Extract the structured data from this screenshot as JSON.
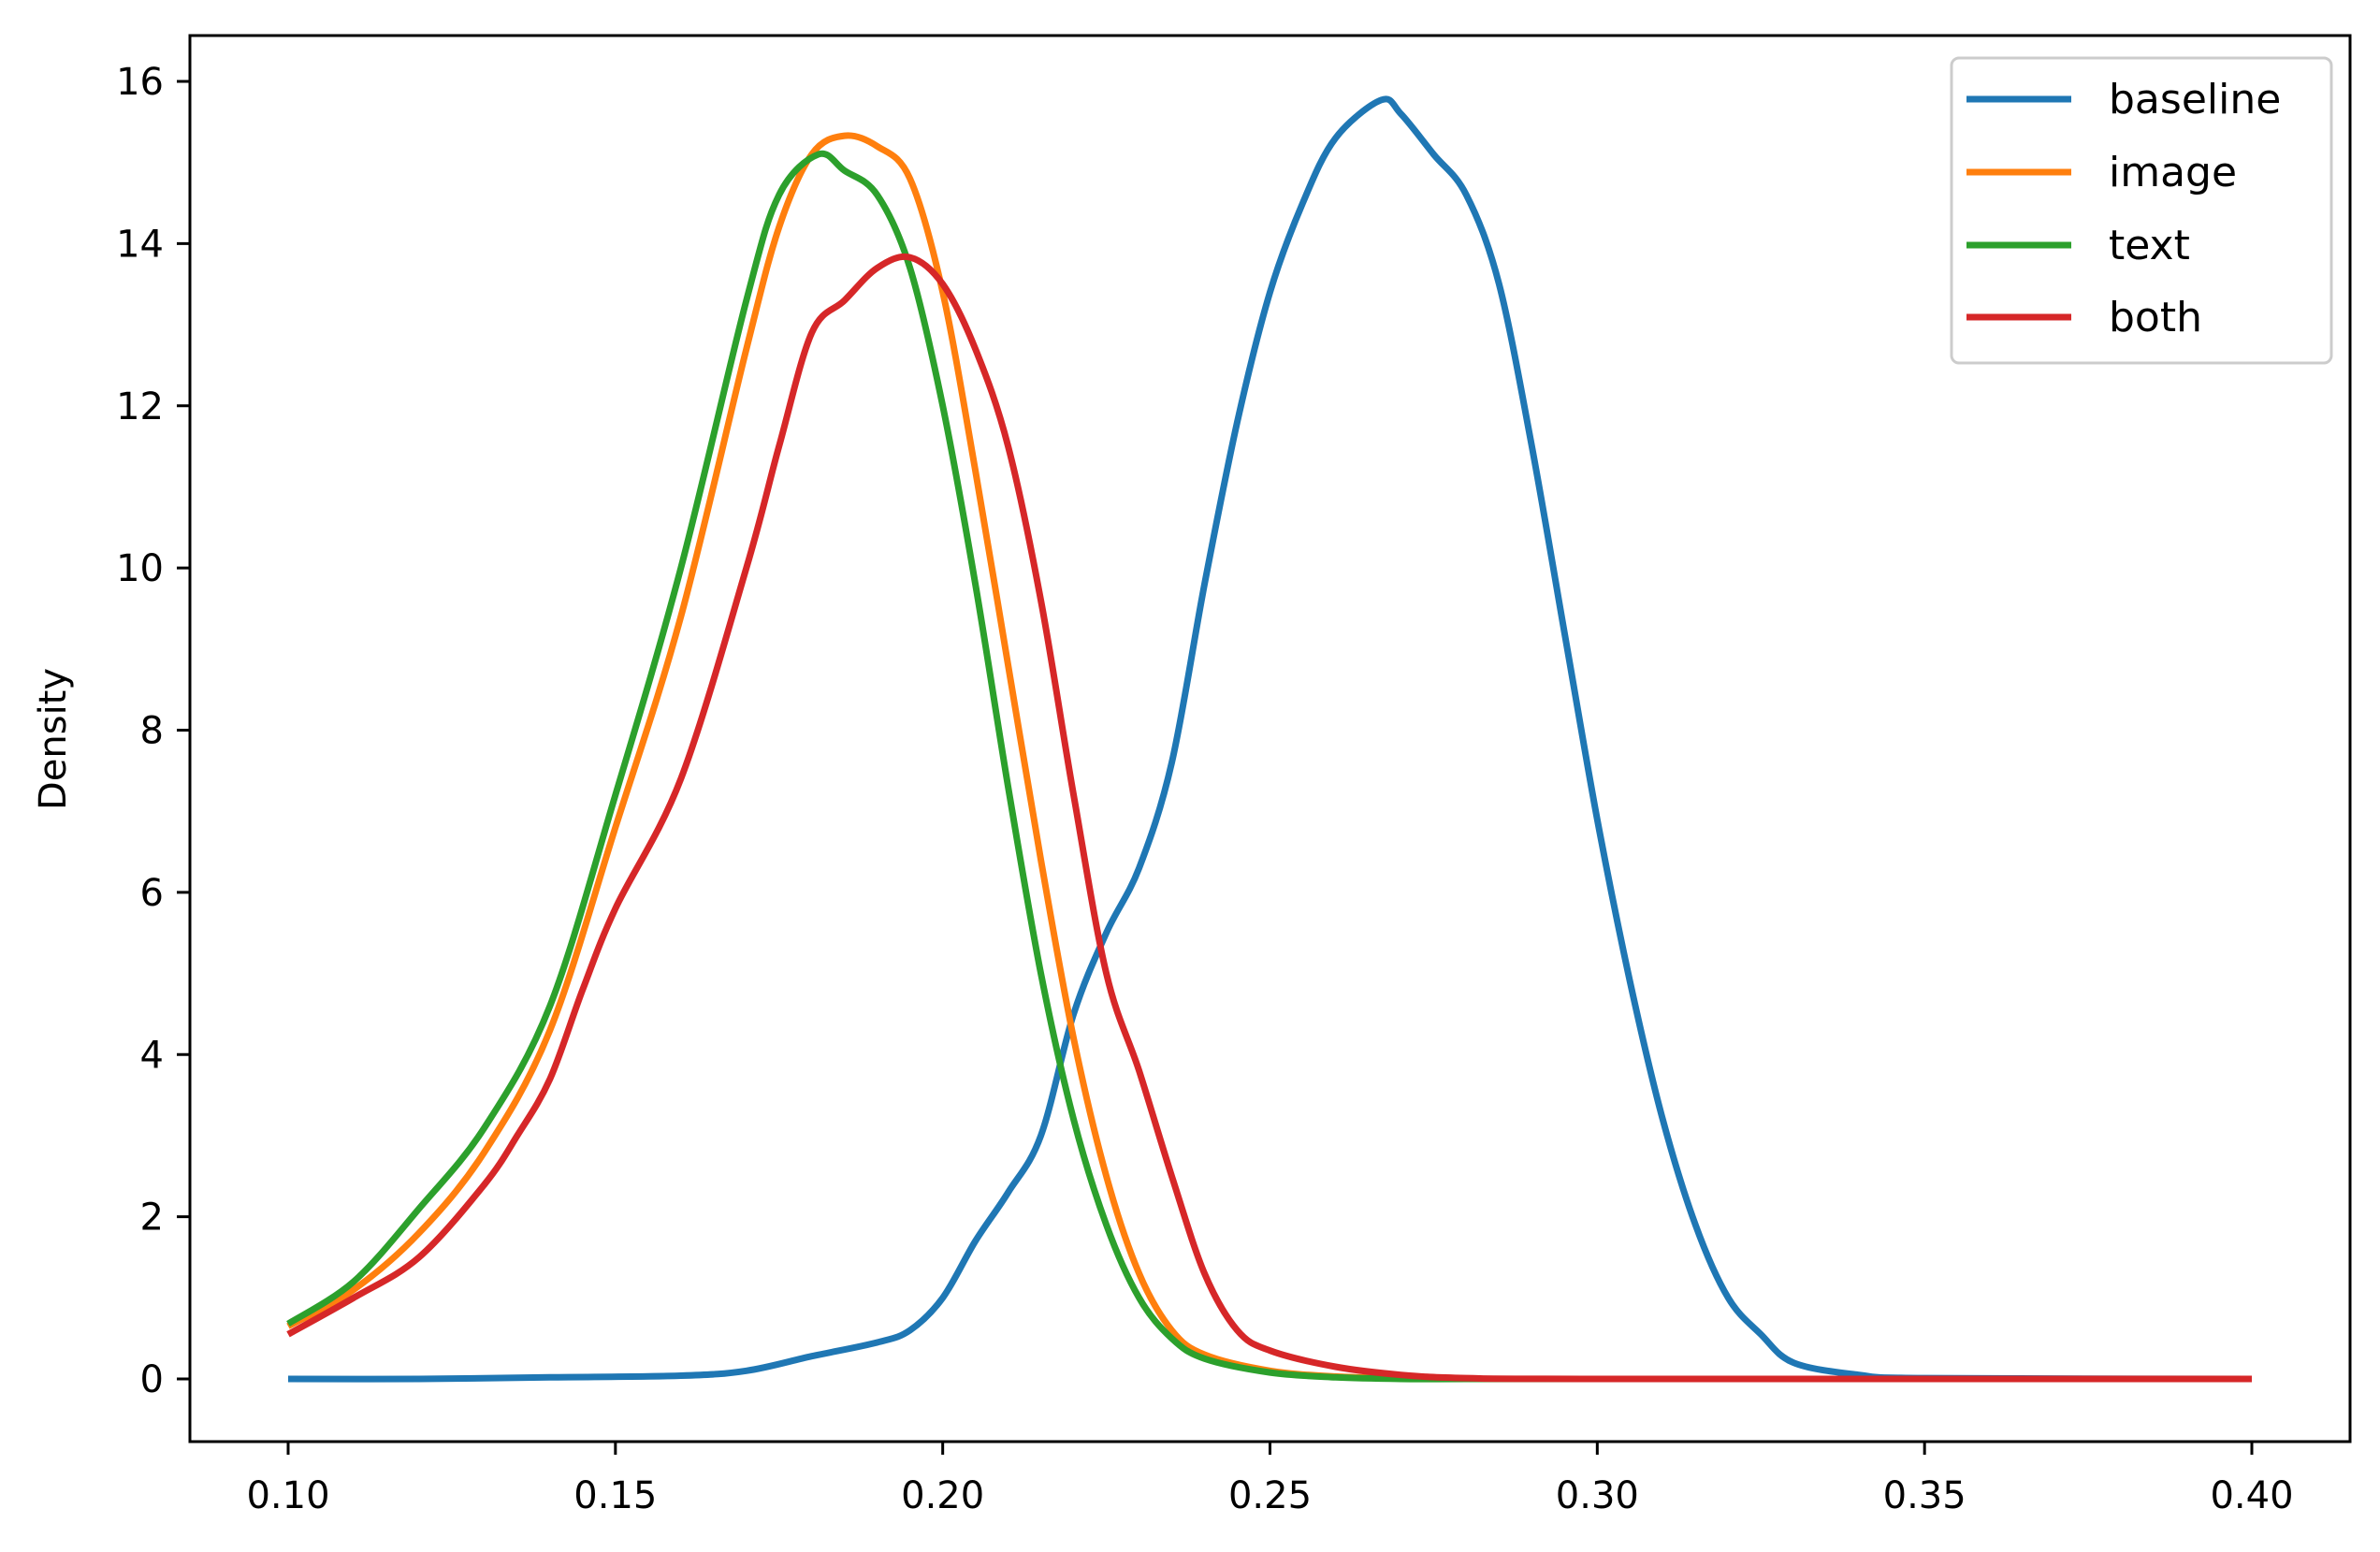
{
  "chart_data": {
    "type": "line",
    "title": "",
    "xlabel": "",
    "ylabel": "Density",
    "xlim": [
      0.086,
      0.415
    ],
    "ylim": [
      -0.78,
      16.6
    ],
    "xticks": [
      0.1,
      0.15,
      0.2,
      0.25,
      0.3,
      0.35,
      0.4
    ],
    "xtick_labels": [
      "0.10",
      "0.15",
      "0.20",
      "0.25",
      "0.30",
      "0.35",
      "0.40"
    ],
    "yticks": [
      0,
      2,
      4,
      6,
      8,
      10,
      12,
      14,
      16
    ],
    "ytick_labels": [
      "0",
      "2",
      "4",
      "6",
      "8",
      "10",
      "12",
      "14",
      "16"
    ],
    "grid": false,
    "legend_position": "upper right",
    "series": [
      {
        "name": "baseline",
        "color": "#1f77b4",
        "x": [
          0.1,
          0.12,
          0.14,
          0.16,
          0.17,
          0.18,
          0.19,
          0.195,
          0.2,
          0.205,
          0.21,
          0.215,
          0.22,
          0.225,
          0.23,
          0.235,
          0.24,
          0.245,
          0.25,
          0.255,
          0.26,
          0.267,
          0.27,
          0.275,
          0.28,
          0.285,
          0.29,
          0.295,
          0.3,
          0.305,
          0.31,
          0.315,
          0.32,
          0.325,
          0.33,
          0.34,
          0.35,
          0.4
        ],
        "y": [
          0.0,
          0.0,
          0.02,
          0.04,
          0.1,
          0.28,
          0.45,
          0.6,
          1.0,
          1.7,
          2.3,
          3.0,
          4.5,
          5.5,
          6.3,
          7.6,
          9.8,
          11.8,
          13.4,
          14.5,
          15.3,
          15.77,
          15.6,
          15.1,
          14.6,
          13.5,
          11.5,
          9.2,
          6.9,
          4.9,
          3.2,
          1.9,
          1.0,
          0.55,
          0.2,
          0.05,
          0.01,
          0.0
        ]
      },
      {
        "name": "image",
        "color": "#ff7f0e",
        "x": [
          0.1,
          0.11,
          0.12,
          0.13,
          0.14,
          0.15,
          0.16,
          0.17,
          0.175,
          0.18,
          0.185,
          0.19,
          0.195,
          0.2,
          0.205,
          0.21,
          0.215,
          0.22,
          0.225,
          0.23,
          0.235,
          0.24,
          0.25,
          0.26,
          0.27,
          0.28,
          0.3,
          0.4
        ],
        "y": [
          0.65,
          1.1,
          1.8,
          2.8,
          4.3,
          6.8,
          9.4,
          12.7,
          14.2,
          15.1,
          15.33,
          15.2,
          14.8,
          13.4,
          11.2,
          8.8,
          6.4,
          4.2,
          2.5,
          1.3,
          0.6,
          0.3,
          0.1,
          0.03,
          0.01,
          0.0,
          0.0,
          0.0
        ]
      },
      {
        "name": "text",
        "color": "#2ca02c",
        "x": [
          0.1,
          0.11,
          0.12,
          0.13,
          0.14,
          0.15,
          0.16,
          0.17,
          0.175,
          0.181,
          0.185,
          0.19,
          0.195,
          0.2,
          0.205,
          0.21,
          0.215,
          0.22,
          0.225,
          0.23,
          0.235,
          0.24,
          0.25,
          0.26,
          0.27,
          0.28,
          0.3,
          0.4
        ],
        "y": [
          0.68,
          1.2,
          2.1,
          3.1,
          4.6,
          7.2,
          10.0,
          13.3,
          14.6,
          15.1,
          14.9,
          14.6,
          13.7,
          12.0,
          9.8,
          7.3,
          5.0,
          3.2,
          1.9,
          1.0,
          0.5,
          0.25,
          0.08,
          0.02,
          0.0,
          0.0,
          0.0,
          0.0
        ]
      },
      {
        "name": "both",
        "color": "#d62728",
        "x": [
          0.1,
          0.11,
          0.12,
          0.13,
          0.135,
          0.14,
          0.145,
          0.15,
          0.16,
          0.17,
          0.175,
          0.18,
          0.185,
          0.19,
          0.195,
          0.2,
          0.205,
          0.21,
          0.215,
          0.22,
          0.225,
          0.23,
          0.235,
          0.24,
          0.245,
          0.25,
          0.26,
          0.27,
          0.28,
          0.3,
          0.4
        ],
        "y": [
          0.55,
          1.0,
          1.5,
          2.4,
          3.0,
          3.7,
          4.8,
          5.8,
          7.4,
          10.0,
          11.5,
          12.9,
          13.3,
          13.7,
          13.83,
          13.5,
          12.7,
          11.5,
          9.6,
          7.2,
          5.0,
          3.8,
          2.5,
          1.3,
          0.6,
          0.35,
          0.15,
          0.05,
          0.01,
          0.0,
          0.0
        ]
      }
    ]
  },
  "legend": {
    "items": [
      {
        "label": "baseline",
        "color": "#1f77b4"
      },
      {
        "label": "image",
        "color": "#ff7f0e"
      },
      {
        "label": "text",
        "color": "#2ca02c"
      },
      {
        "label": "both",
        "color": "#d62728"
      }
    ]
  },
  "axes": {
    "ylabel": "Density",
    "xtick_labels": [
      "0.10",
      "0.15",
      "0.20",
      "0.25",
      "0.30",
      "0.35",
      "0.40"
    ],
    "ytick_labels": [
      "0",
      "2",
      "4",
      "6",
      "8",
      "10",
      "12",
      "14",
      "16"
    ]
  }
}
